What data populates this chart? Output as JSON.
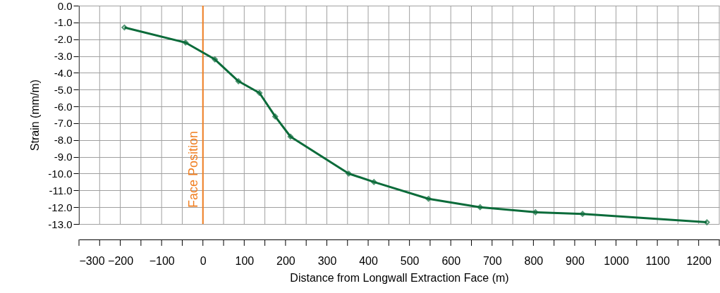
{
  "chart_data": {
    "type": "line",
    "xlabel": "Distance from Longwall Extraction Face (m)",
    "ylabel": "Strain (mm/m)",
    "x": [
      -190,
      -42,
      29,
      86,
      137,
      175,
      212,
      353,
      414,
      546,
      671,
      805,
      919,
      1220
    ],
    "series": [
      {
        "color": "#0b6b3a",
        "values": [
          -1.3,
          -2.2,
          -3.2,
          -4.5,
          -5.2,
          -6.6,
          -7.8,
          -10.0,
          -10.5,
          -11.5,
          -12.0,
          -12.3,
          -12.4,
          -12.9
        ]
      }
    ],
    "xlim": [
      -300,
      1250
    ],
    "xticks": [
      -300,
      {
        "value": -250,
        "label": null
      },
      -200,
      {
        "value": -150,
        "label": null
      },
      -100,
      {
        "value": -50,
        "label": null
      },
      0,
      {
        "value": 50,
        "label": null
      },
      100,
      {
        "value": 150,
        "label": null
      },
      200,
      {
        "value": 250,
        "label": null
      },
      300,
      {
        "value": 350,
        "label": null
      },
      400,
      {
        "value": 450,
        "label": null
      },
      500,
      {
        "value": 550,
        "label": null
      },
      600,
      {
        "value": 650,
        "label": null
      },
      700,
      {
        "value": 750,
        "label": null
      },
      800,
      {
        "value": 850,
        "label": null
      },
      900,
      {
        "value": 950,
        "label": null
      },
      1000,
      {
        "value": 1050,
        "label": null
      },
      1100,
      {
        "value": 1150,
        "label": null
      },
      1200,
      {
        "value": 1250,
        "label": null
      }
    ],
    "ylim": [
      -13,
      0
    ],
    "yticks": [
      {
        "value": 0,
        "label": "0.0"
      },
      {
        "value": -1,
        "label": "-1.0"
      },
      {
        "value": -2,
        "label": "-2.0"
      },
      {
        "value": -3,
        "label": "-3.0"
      },
      {
        "value": -4,
        "label": "-4.0"
      },
      {
        "value": -5,
        "label": "-5.0"
      },
      {
        "value": -6,
        "label": "-6.0"
      },
      {
        "value": -7,
        "label": "-7.0"
      },
      {
        "value": -8,
        "label": "-8.0"
      },
      {
        "value": -9,
        "label": "-9.0"
      },
      {
        "value": -10,
        "label": "-10.0"
      },
      {
        "value": -11,
        "label": "-11.0"
      },
      {
        "value": -12,
        "label": "-12.0"
      },
      {
        "value": -13,
        "label": "-13.0"
      }
    ],
    "ref_lines": [
      {
        "axis": "x",
        "value": 0,
        "label": "Face Position",
        "color": "#f07f22"
      }
    ],
    "grid": true,
    "marker": "diamond",
    "line_style": "solid"
  }
}
